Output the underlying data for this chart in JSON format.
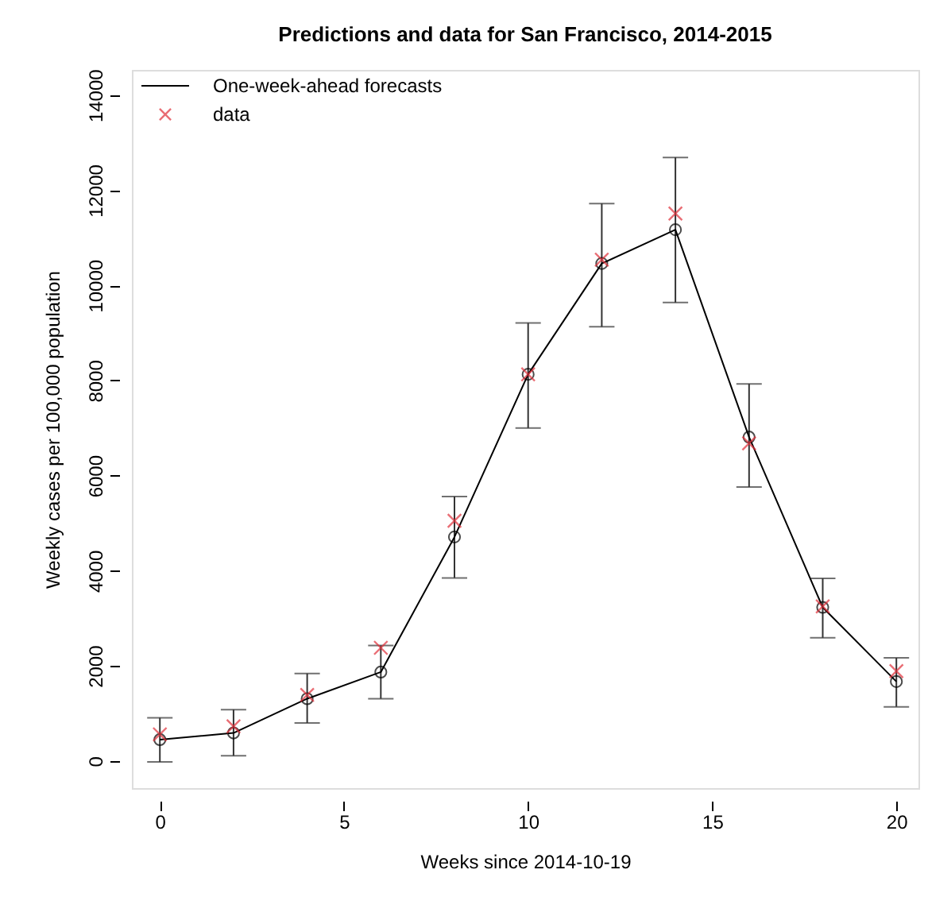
{
  "chart_data": {
    "type": "line",
    "title": "Predictions and data for San Francisco, 2014-2015",
    "xlabel": "Weeks since 2014-10-19",
    "ylabel": "Weekly cases per 100,000 population",
    "x": [
      0,
      2,
      4,
      6,
      8,
      10,
      12,
      14,
      16,
      18,
      20
    ],
    "series": [
      {
        "name": "One-week-ahead forecasts",
        "color": "#000000",
        "marker": "circle",
        "values": [
          450,
          590,
          1310,
          1870,
          4710,
          8130,
          10460,
          11170,
          6810,
          3230,
          1670
        ],
        "errors": [
          [
            -20,
            910
          ],
          [
            110,
            1080
          ],
          [
            800,
            1840
          ],
          [
            1310,
            2430
          ],
          [
            3850,
            5560
          ],
          [
            7000,
            9210
          ],
          [
            9130,
            11720
          ],
          [
            9640,
            12690
          ],
          [
            5760,
            7930
          ],
          [
            2590,
            3840
          ],
          [
            1140,
            2170
          ]
        ]
      },
      {
        "name": "data",
        "type": "scatter",
        "color": "#e0303a",
        "marker": "cross",
        "values": [
          560,
          730,
          1390,
          2380,
          5050,
          8130,
          10540,
          11510,
          6680,
          3250,
          1890
        ]
      }
    ],
    "xlim": [
      -0.76,
      20.6
    ],
    "ylim": [
      -570,
      14530
    ],
    "xticks": [
      0,
      5,
      10,
      15,
      20
    ],
    "yticks": [
      0,
      2000,
      4000,
      6000,
      8000,
      10000,
      12000,
      14000
    ],
    "grid": false,
    "legend": "top left"
  }
}
